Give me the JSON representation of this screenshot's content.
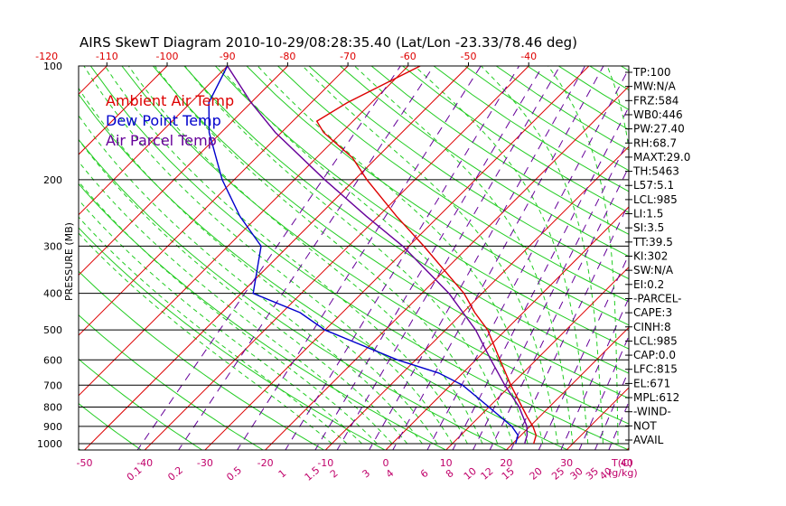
{
  "chart_data": {
    "type": "line",
    "title": "AIRS SkewT Diagram 2010-10-29/08:28:35.40 (Lat/Lon -23.33/78.46 deg)",
    "ylabel": "PRESSURE (MB)",
    "xlabel_bottom": "T(C)",
    "mixing_ratio_label": "(g/kg)",
    "y_scale": "log",
    "ylim": [
      1050,
      100
    ],
    "xlim": [
      -55,
      20
    ],
    "top_ticks": [
      "-120",
      "-110",
      "-100",
      "-90",
      "-80",
      "-70",
      "-60",
      "-50",
      "-40"
    ],
    "bottom_ticks": [
      "-50",
      "-40",
      "-30",
      "-20",
      "-10",
      "0",
      "10",
      "20",
      "30",
      "40"
    ],
    "pressure_ticks": [
      "100",
      "200",
      "300",
      "400",
      "500",
      "600",
      "700",
      "800",
      "900",
      "1000"
    ],
    "mixing_ratio_ticks": [
      "0.1",
      "0.2",
      "0.5",
      "1",
      "1.5",
      "2",
      "3",
      "4",
      "6",
      "8",
      "10",
      "12",
      "15",
      "20",
      "25",
      "30",
      "35",
      "40"
    ],
    "legend": [
      {
        "label": "Ambient Air Temp",
        "color": "#dd0000"
      },
      {
        "label": "Dew Point Temp",
        "color": "#0000cc"
      },
      {
        "label": "Air Parcel Temp",
        "color": "#660099"
      }
    ],
    "series": [
      {
        "name": "Ambient Air Temp",
        "color": "#dd0000",
        "points": [
          [
            1000,
            23.5
          ],
          [
            950,
            22.5
          ],
          [
            900,
            20.5
          ],
          [
            850,
            18
          ],
          [
            800,
            15.5
          ],
          [
            700,
            10
          ],
          [
            600,
            4
          ],
          [
            500,
            -3
          ],
          [
            450,
            -8
          ],
          [
            400,
            -13
          ],
          [
            300,
            -27.5
          ],
          [
            250,
            -37
          ],
          [
            200,
            -48
          ],
          [
            175,
            -54
          ],
          [
            150,
            -63
          ],
          [
            140,
            -66
          ],
          [
            125,
            -64
          ],
          [
            100,
            -58
          ]
        ]
      },
      {
        "name": "Dew Point Temp",
        "color": "#0000cc",
        "points": [
          [
            1000,
            20.5
          ],
          [
            950,
            19.5
          ],
          [
            900,
            17
          ],
          [
            800,
            10
          ],
          [
            700,
            2
          ],
          [
            650,
            -4
          ],
          [
            600,
            -13
          ],
          [
            500,
            -30
          ],
          [
            450,
            -37
          ],
          [
            400,
            -48
          ],
          [
            300,
            -54.5
          ],
          [
            250,
            -63
          ],
          [
            200,
            -72
          ],
          [
            150,
            -82
          ],
          [
            125,
            -87
          ],
          [
            100,
            -90
          ]
        ]
      },
      {
        "name": "Air Parcel Temp",
        "color": "#660099",
        "points": [
          [
            1000,
            22
          ],
          [
            950,
            21
          ],
          [
            900,
            19.5
          ],
          [
            800,
            15
          ],
          [
            700,
            9
          ],
          [
            600,
            2.5
          ],
          [
            500,
            -5
          ],
          [
            400,
            -15.5
          ],
          [
            300,
            -31
          ],
          [
            250,
            -42
          ],
          [
            200,
            -55
          ],
          [
            150,
            -71
          ],
          [
            125,
            -80
          ],
          [
            100,
            -90
          ]
        ]
      }
    ],
    "indices": [
      "TP:100",
      "MW:N/A",
      "FRZ:584",
      "WB0:446",
      "PW:27.40",
      "RH:68.7",
      "MAXT:29.0",
      "TH:5463",
      "L57:5.1",
      "LCL:985",
      "LI:1.5",
      "SI:3.5",
      "TT:39.5",
      "KI:302",
      "SW:N/A",
      "EI:0.2",
      "-PARCEL-",
      "CAPE:3",
      "CINH:8",
      "LCL:985",
      "CAP:0.0",
      "LFC:815",
      "EL:671",
      "MPL:612",
      "-WIND-",
      "NOT",
      "AVAIL"
    ],
    "grid": true,
    "legend_placement": "top-left"
  }
}
